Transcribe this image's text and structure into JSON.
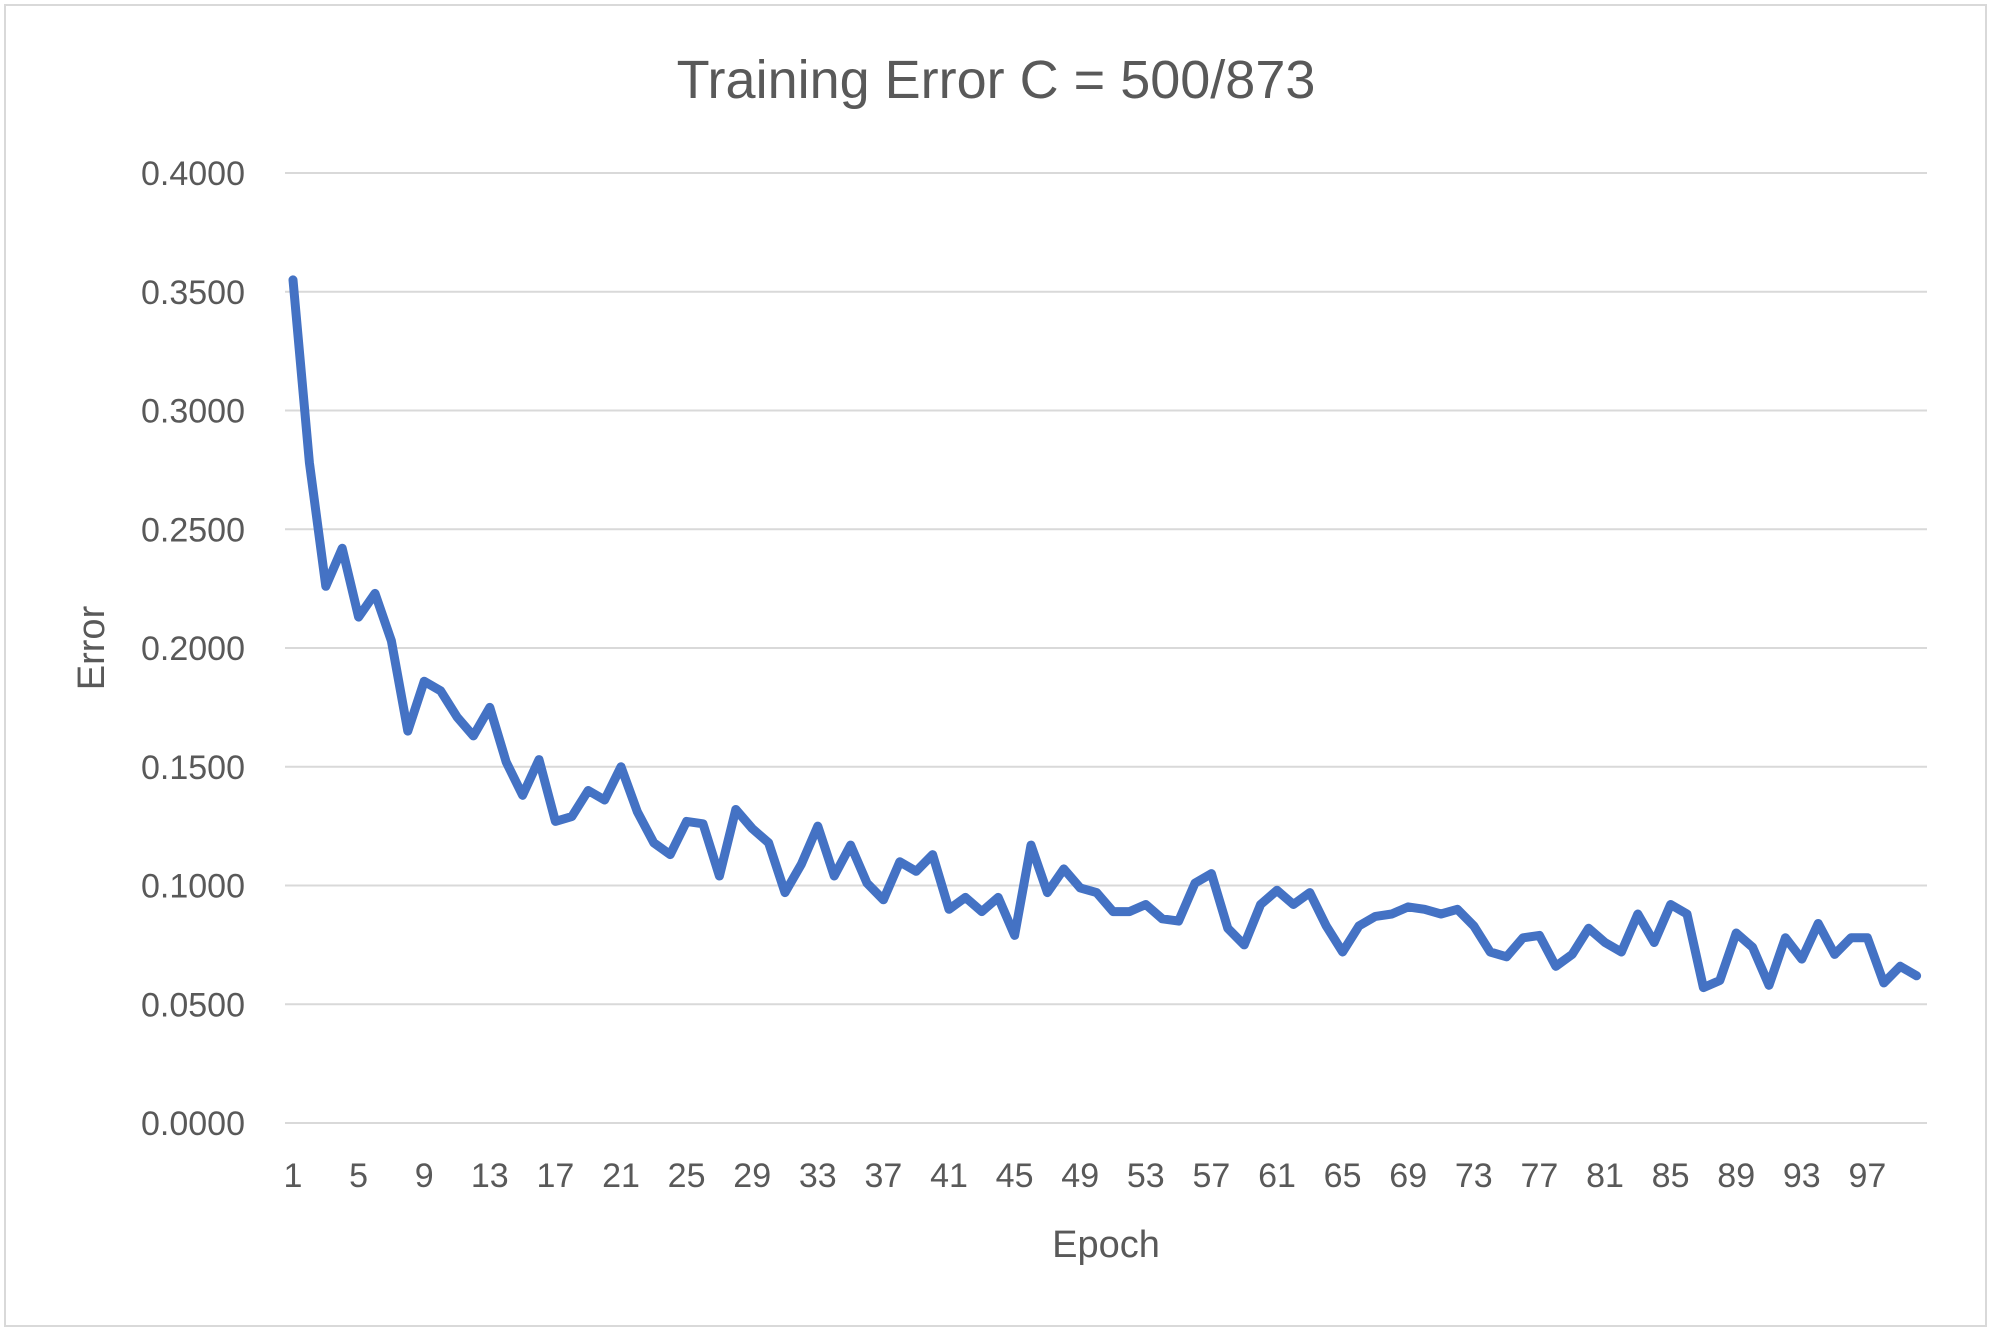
{
  "chart_data": {
    "type": "line",
    "title": "Training Error C = 500/873",
    "xlabel": "Epoch",
    "ylabel": "Error",
    "ylim": [
      0,
      0.4
    ],
    "yticks": [
      "0.0000",
      "0.0500",
      "0.1000",
      "0.1500",
      "0.2000",
      "0.2500",
      "0.3000",
      "0.3500",
      "0.4000"
    ],
    "xticks": [
      1,
      5,
      9,
      13,
      17,
      21,
      25,
      29,
      33,
      37,
      41,
      45,
      49,
      53,
      57,
      61,
      65,
      69,
      73,
      77,
      81,
      85,
      89,
      93,
      97
    ],
    "grid": true,
    "color": "#4472C4",
    "series": [
      {
        "name": "Training Error",
        "x": [
          1,
          2,
          3,
          4,
          5,
          6,
          7,
          8,
          9,
          10,
          11,
          12,
          13,
          14,
          15,
          16,
          17,
          18,
          19,
          20,
          21,
          22,
          23,
          24,
          25,
          26,
          27,
          28,
          29,
          30,
          31,
          32,
          33,
          34,
          35,
          36,
          37,
          38,
          39,
          40,
          41,
          42,
          43,
          44,
          45,
          46,
          47,
          48,
          49,
          50,
          51,
          52,
          53,
          54,
          55,
          56,
          57,
          58,
          59,
          60,
          61,
          62,
          63,
          64,
          65,
          66,
          67,
          68,
          69,
          70,
          71,
          72,
          73,
          74,
          75,
          76,
          77,
          78,
          79,
          80,
          81,
          82,
          83,
          84,
          85,
          86,
          87,
          88,
          89,
          90,
          91,
          92,
          93,
          94,
          95,
          96,
          97,
          98,
          99,
          100
        ],
        "values": [
          0.355,
          0.278,
          0.226,
          0.242,
          0.213,
          0.223,
          0.203,
          0.165,
          0.186,
          0.182,
          0.171,
          0.163,
          0.175,
          0.152,
          0.138,
          0.153,
          0.127,
          0.129,
          0.14,
          0.136,
          0.15,
          0.131,
          0.118,
          0.113,
          0.127,
          0.126,
          0.104,
          0.132,
          0.124,
          0.118,
          0.097,
          0.109,
          0.125,
          0.104,
          0.117,
          0.101,
          0.094,
          0.11,
          0.106,
          0.113,
          0.09,
          0.095,
          0.089,
          0.095,
          0.079,
          0.117,
          0.097,
          0.107,
          0.099,
          0.097,
          0.089,
          0.089,
          0.092,
          0.086,
          0.085,
          0.101,
          0.105,
          0.082,
          0.075,
          0.092,
          0.098,
          0.092,
          0.097,
          0.083,
          0.072,
          0.083,
          0.087,
          0.088,
          0.091,
          0.09,
          0.088,
          0.09,
          0.083,
          0.072,
          0.07,
          0.078,
          0.079,
          0.066,
          0.071,
          0.082,
          0.076,
          0.072,
          0.088,
          0.076,
          0.092,
          0.088,
          0.057,
          0.06,
          0.08,
          0.074,
          0.058,
          0.078,
          0.069,
          0.084,
          0.071,
          0.078,
          0.078,
          0.059,
          0.066,
          0.062
        ]
      }
    ]
  }
}
